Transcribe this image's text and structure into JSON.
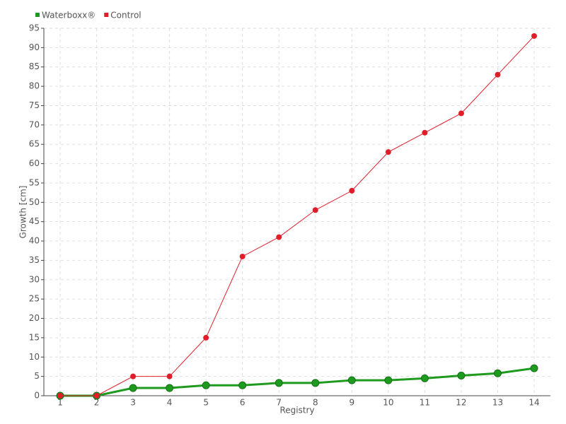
{
  "chart_data": {
    "type": "line",
    "x_label": "Registry",
    "y_label": "Growth [cm]",
    "categories": [
      "1",
      "2",
      "3",
      "4",
      "5",
      "6",
      "7",
      "8",
      "9",
      "10",
      "11",
      "12",
      "13",
      "14"
    ],
    "series": [
      {
        "name": "Waterboxx®",
        "color": "#1e9a1e",
        "values": [
          0,
          0,
          2,
          2,
          2.7,
          2.7,
          3.3,
          3.3,
          4,
          4,
          4.5,
          5.2,
          5.8,
          7.1
        ]
      },
      {
        "name": "Control",
        "color": "#e01e2a",
        "values": [
          0,
          0,
          5,
          5,
          15,
          36,
          41,
          48,
          53,
          63,
          68,
          73,
          83,
          93
        ]
      }
    ],
    "ylim": [
      0,
      95
    ],
    "yticks": [
      0,
      5,
      10,
      15,
      20,
      25,
      30,
      35,
      40,
      45,
      50,
      55,
      60,
      65,
      70,
      75,
      80,
      85,
      90,
      95
    ],
    "grid": true,
    "legend": "top-left"
  }
}
